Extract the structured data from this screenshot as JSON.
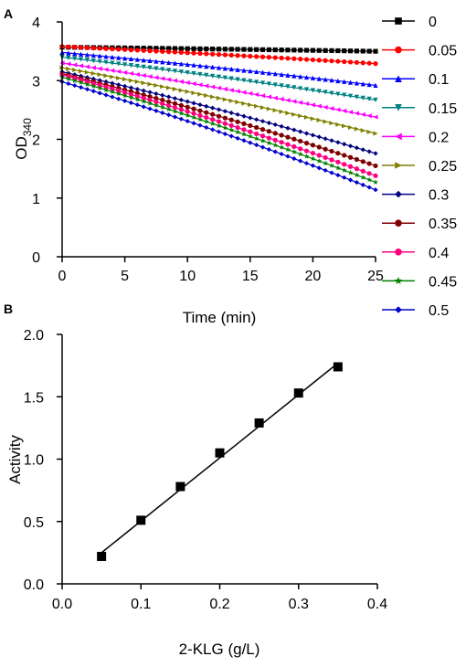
{
  "panels": {
    "a": {
      "letter": "A"
    },
    "b": {
      "letter": "B"
    }
  },
  "chart_data": [
    {
      "type": "line",
      "xlabel": "Time (min)",
      "ylabel": "OD",
      "ylabel_subscript": "340",
      "xlim": [
        0,
        25
      ],
      "ylim": [
        0,
        4
      ],
      "x_ticks": [
        "0",
        "5",
        "10",
        "15",
        "20",
        "25"
      ],
      "y_ticks": [
        "0",
        "1",
        "2",
        "3",
        "4"
      ],
      "grid": false,
      "legend_position": "right",
      "sample_interval_min": 0.5,
      "series": [
        {
          "name": "0",
          "color": "#000000",
          "marker": "square",
          "y0": 3.57,
          "y25": 3.5
        },
        {
          "name": "0.05",
          "color": "#ff0000",
          "marker": "circle",
          "y0": 3.58,
          "y25": 3.29
        },
        {
          "name": "0.1",
          "color": "#0000ff",
          "marker": "triangle-up",
          "y0": 3.48,
          "y25": 2.92
        },
        {
          "name": "0.15",
          "color": "#008080",
          "marker": "triangle-down",
          "y0": 3.4,
          "y25": 2.67
        },
        {
          "name": "0.2",
          "color": "#ff00ff",
          "marker": "triangle-left",
          "y0": 3.3,
          "y25": 2.38
        },
        {
          "name": "0.25",
          "color": "#808000",
          "marker": "triangle-right",
          "y0": 3.22,
          "y25": 2.1
        },
        {
          "name": "0.3",
          "color": "#000080",
          "marker": "diamond",
          "y0": 3.15,
          "y25": 1.76
        },
        {
          "name": "0.35",
          "color": "#800000",
          "marker": "circle",
          "y0": 3.12,
          "y25": 1.55
        },
        {
          "name": "0.4",
          "color": "#ff0080",
          "marker": "circle",
          "y0": 3.1,
          "y25": 1.38
        },
        {
          "name": "0.45",
          "color": "#008000",
          "marker": "star",
          "y0": 3.06,
          "y25": 1.27
        },
        {
          "name": "0.5",
          "color": "#0000cd",
          "marker": "diamond",
          "y0": 2.98,
          "y25": 1.14
        }
      ]
    },
    {
      "type": "scatter",
      "xlabel": "2-KLG (g/L)",
      "ylabel": "Activity",
      "xlim": [
        0,
        0.4
      ],
      "ylim": [
        0,
        2.0
      ],
      "x_ticks": [
        "0.0",
        "0.1",
        "0.2",
        "0.3",
        "0.4"
      ],
      "y_ticks": [
        "0.0",
        "0.5",
        "1.0",
        "1.5",
        "2.0"
      ],
      "grid": false,
      "marker": "square",
      "color": "#000000",
      "x": [
        0.05,
        0.1,
        0.15,
        0.2,
        0.25,
        0.3,
        0.35
      ],
      "y": [
        0.22,
        0.51,
        0.78,
        1.05,
        1.29,
        1.53,
        1.74
      ],
      "fit_line": {
        "x": [
          0.05,
          0.35
        ],
        "y": [
          0.25,
          1.77
        ]
      }
    }
  ]
}
